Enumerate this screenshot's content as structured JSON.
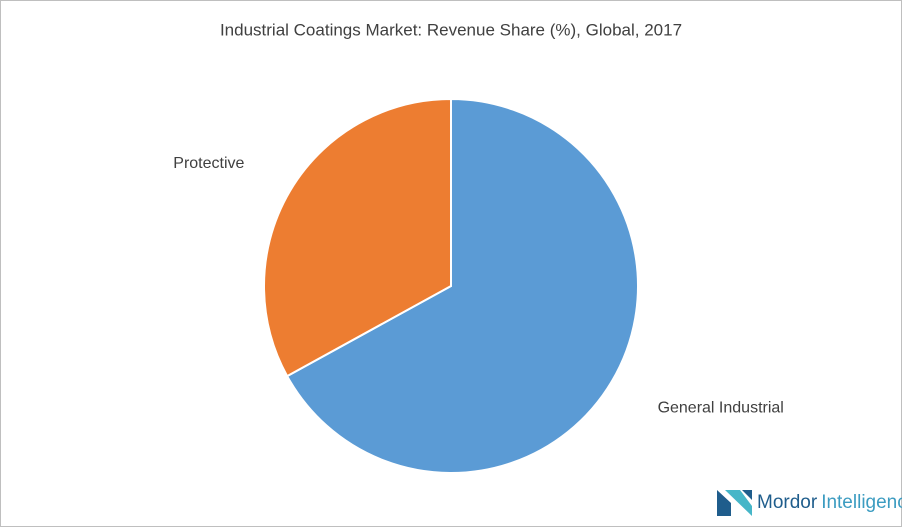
{
  "chart_data": {
    "type": "pie",
    "title": "Industrial Coatings Market: Revenue Share (%), Global, 2017",
    "categories": [
      "General Industrial",
      "Protective"
    ],
    "values": [
      67,
      33
    ],
    "colors": [
      "#5b9bd5",
      "#ed7d31"
    ],
    "watermark": {
      "brand": "Mordor",
      "suffix": "Intelligence"
    }
  }
}
